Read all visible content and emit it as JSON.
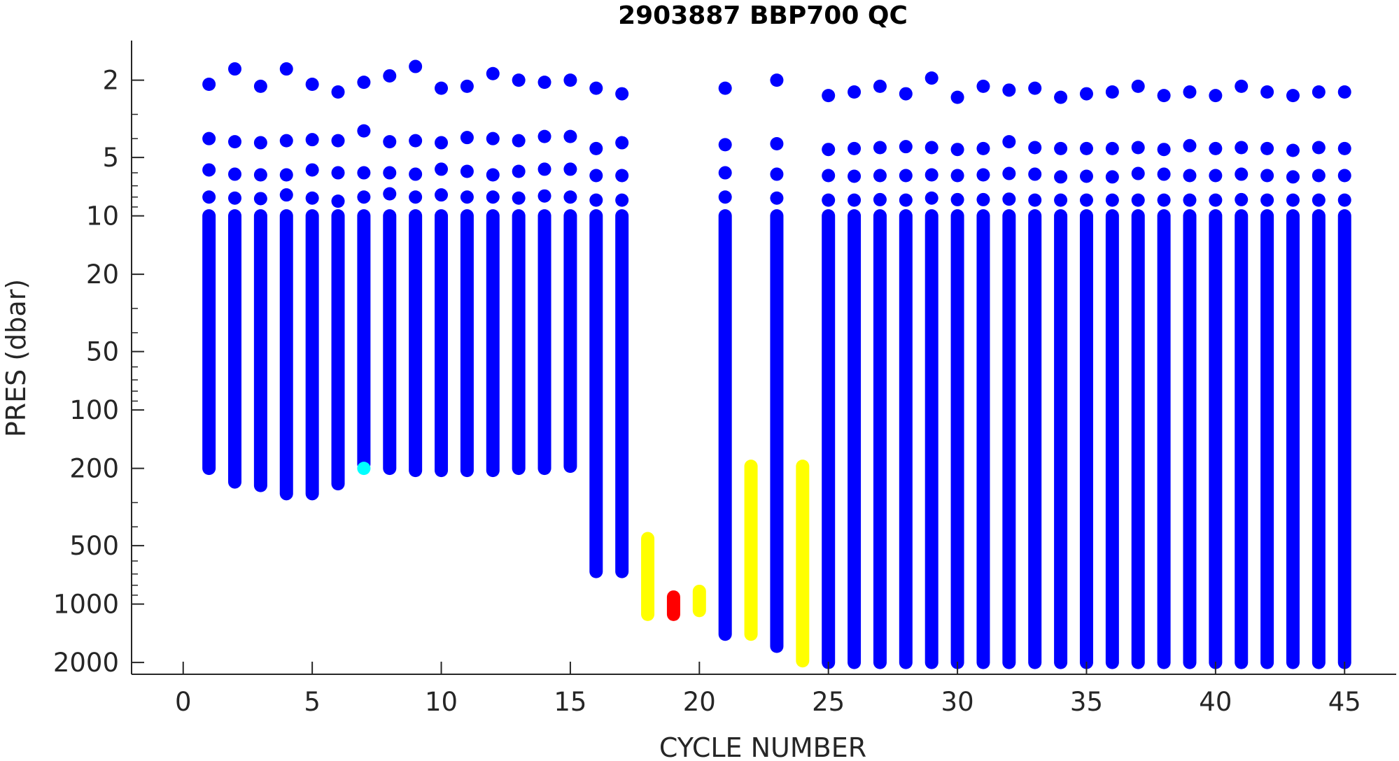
{
  "chart_data": {
    "type": "scatter",
    "title": "2903887 BBP700 QC",
    "xlabel": "CYCLE NUMBER",
    "ylabel": "PRES (dbar)",
    "xlim": [
      -2,
      47
    ],
    "xticks": [
      0,
      5,
      10,
      15,
      20,
      25,
      30,
      35,
      40,
      45
    ],
    "yscale": "log",
    "yreversed": true,
    "ylim": [
      1.25,
      2300
    ],
    "yticks": [
      2,
      5,
      10,
      20,
      50,
      100,
      200,
      500,
      1000,
      2000
    ],
    "colors": {
      "qc_good": "#0000ff",
      "qc_cyan": "#00ffff",
      "qc_yellow": "#ffff00",
      "qc_red": "#ff0000"
    },
    "profiles": [
      {
        "cycle": 1,
        "color": "#0000ff",
        "top_points": [
          2.1,
          4.0,
          5.8,
          8.0
        ],
        "column_range": [
          10,
          200
        ]
      },
      {
        "cycle": 2,
        "color": "#0000ff",
        "top_points": [
          1.75,
          4.15,
          6.1,
          8.1
        ],
        "column_range": [
          10,
          235
        ]
      },
      {
        "cycle": 3,
        "color": "#0000ff",
        "top_points": [
          2.15,
          4.2,
          6.15,
          8.15
        ],
        "column_range": [
          10,
          245
        ]
      },
      {
        "cycle": 4,
        "color": "#0000ff",
        "top_points": [
          1.75,
          4.1,
          6.15,
          7.8
        ],
        "column_range": [
          10,
          270
        ]
      },
      {
        "cycle": 5,
        "color": "#0000ff",
        "top_points": [
          2.1,
          4.05,
          5.8,
          8.1
        ],
        "column_range": [
          10,
          270
        ]
      },
      {
        "cycle": 6,
        "color": "#0000ff",
        "top_points": [
          2.3,
          4.1,
          6.0,
          8.4
        ],
        "column_range": [
          10,
          240
        ]
      },
      {
        "cycle": 7,
        "color": "#0000ff",
        "top_points": [
          2.05,
          3.65,
          6.0,
          8.0
        ],
        "column_range": [
          10,
          190
        ]
      },
      {
        "cycle": 7,
        "color": "#00ffff",
        "top_points": [
          200
        ],
        "column_range": null
      },
      {
        "cycle": 8,
        "color": "#0000ff",
        "top_points": [
          1.9,
          4.15,
          6.0,
          7.7
        ],
        "column_range": [
          10,
          200
        ]
      },
      {
        "cycle": 9,
        "color": "#0000ff",
        "top_points": [
          1.7,
          4.1,
          6.1,
          8.0
        ],
        "column_range": [
          10,
          205
        ]
      },
      {
        "cycle": 10,
        "color": "#0000ff",
        "top_points": [
          2.2,
          4.2,
          5.75,
          7.8
        ],
        "column_range": [
          10,
          205
        ]
      },
      {
        "cycle": 11,
        "color": "#0000ff",
        "top_points": [
          2.15,
          3.95,
          5.9,
          8.0
        ],
        "column_range": [
          10,
          205
        ]
      },
      {
        "cycle": 12,
        "color": "#0000ff",
        "top_points": [
          1.85,
          4.0,
          6.15,
          8.0
        ],
        "column_range": [
          10,
          205
        ]
      },
      {
        "cycle": 13,
        "color": "#0000ff",
        "top_points": [
          2.0,
          4.1,
          5.9,
          8.1
        ],
        "column_range": [
          10,
          200
        ]
      },
      {
        "cycle": 14,
        "color": "#0000ff",
        "top_points": [
          2.05,
          3.9,
          5.75,
          7.9
        ],
        "column_range": [
          10,
          200
        ]
      },
      {
        "cycle": 15,
        "color": "#0000ff",
        "top_points": [
          2.0,
          3.9,
          5.75,
          8.0
        ],
        "column_range": [
          10,
          195
        ]
      },
      {
        "cycle": 16,
        "color": "#0000ff",
        "top_points": [
          2.2,
          4.5,
          6.2,
          8.3
        ],
        "column_range": [
          10,
          680
        ]
      },
      {
        "cycle": 17,
        "color": "#0000ff",
        "top_points": [
          2.35,
          4.2,
          6.2,
          8.3
        ],
        "column_range": [
          10,
          680
        ]
      },
      {
        "cycle": 18,
        "color": "#ffff00",
        "top_points": [],
        "column_range": [
          460,
          1130
        ]
      },
      {
        "cycle": 19,
        "color": "#ff0000",
        "top_points": [],
        "column_range": [
          920,
          1130
        ]
      },
      {
        "cycle": 20,
        "color": "#ffff00",
        "top_points": [],
        "column_range": [
          860,
          1080
        ]
      },
      {
        "cycle": 21,
        "color": "#0000ff",
        "top_points": [
          2.2,
          4.3,
          6.0,
          8.0
        ],
        "column_range": [
          10,
          1430
        ]
      },
      {
        "cycle": 22,
        "color": "#ffff00",
        "top_points": [],
        "column_range": [
          195,
          1430
        ]
      },
      {
        "cycle": 23,
        "color": "#0000ff",
        "top_points": [
          2.0,
          4.25,
          6.1,
          8.1
        ],
        "column_range": [
          10,
          1650
        ]
      },
      {
        "cycle": 24,
        "color": "#ffff00",
        "top_points": [],
        "column_range": [
          195,
          1960
        ]
      },
      {
        "cycle": 25,
        "color": "#0000ff",
        "top_points": [
          2.4,
          4.55,
          6.2,
          8.3
        ],
        "column_range": [
          10,
          2000
        ]
      },
      {
        "cycle": 26,
        "color": "#0000ff",
        "top_points": [
          2.3,
          4.5,
          6.25,
          8.3
        ],
        "column_range": [
          10,
          2000
        ]
      },
      {
        "cycle": 27,
        "color": "#0000ff",
        "top_points": [
          2.15,
          4.45,
          6.2,
          8.25
        ],
        "column_range": [
          10,
          2000
        ]
      },
      {
        "cycle": 28,
        "color": "#0000ff",
        "top_points": [
          2.35,
          4.4,
          6.2,
          8.3
        ],
        "column_range": [
          10,
          2000
        ]
      },
      {
        "cycle": 29,
        "color": "#0000ff",
        "top_points": [
          1.95,
          4.45,
          6.15,
          8.1
        ],
        "column_range": [
          10,
          2000
        ]
      },
      {
        "cycle": 30,
        "color": "#0000ff",
        "top_points": [
          2.45,
          4.55,
          6.2,
          8.25
        ],
        "column_range": [
          10,
          2000
        ]
      },
      {
        "cycle": 31,
        "color": "#0000ff",
        "top_points": [
          2.15,
          4.5,
          6.15,
          8.25
        ],
        "column_range": [
          10,
          2000
        ]
      },
      {
        "cycle": 32,
        "color": "#0000ff",
        "top_points": [
          2.25,
          4.15,
          6.05,
          8.2
        ],
        "column_range": [
          10,
          2000
        ]
      },
      {
        "cycle": 33,
        "color": "#0000ff",
        "top_points": [
          2.2,
          4.45,
          6.1,
          8.3
        ],
        "column_range": [
          10,
          2000
        ]
      },
      {
        "cycle": 34,
        "color": "#0000ff",
        "top_points": [
          2.45,
          4.5,
          6.3,
          8.3
        ],
        "column_range": [
          10,
          2000
        ]
      },
      {
        "cycle": 35,
        "color": "#0000ff",
        "top_points": [
          2.35,
          4.5,
          6.25,
          8.3
        ],
        "column_range": [
          10,
          2000
        ]
      },
      {
        "cycle": 36,
        "color": "#0000ff",
        "top_points": [
          2.3,
          4.5,
          6.3,
          8.3
        ],
        "column_range": [
          10,
          2000
        ]
      },
      {
        "cycle": 37,
        "color": "#0000ff",
        "top_points": [
          2.15,
          4.45,
          6.05,
          8.3
        ],
        "column_range": [
          10,
          2000
        ]
      },
      {
        "cycle": 38,
        "color": "#0000ff",
        "top_points": [
          2.4,
          4.55,
          6.1,
          8.3
        ],
        "column_range": [
          10,
          2000
        ]
      },
      {
        "cycle": 39,
        "color": "#0000ff",
        "top_points": [
          2.3,
          4.35,
          6.2,
          8.3
        ],
        "column_range": [
          10,
          2000
        ]
      },
      {
        "cycle": 40,
        "color": "#0000ff",
        "top_points": [
          2.4,
          4.5,
          6.2,
          8.3
        ],
        "column_range": [
          10,
          2000
        ]
      },
      {
        "cycle": 41,
        "color": "#0000ff",
        "top_points": [
          2.15,
          4.45,
          6.1,
          8.25
        ],
        "column_range": [
          10,
          2000
        ]
      },
      {
        "cycle": 42,
        "color": "#0000ff",
        "top_points": [
          2.3,
          4.5,
          6.2,
          8.3
        ],
        "column_range": [
          10,
          2000
        ]
      },
      {
        "cycle": 43,
        "color": "#0000ff",
        "top_points": [
          2.4,
          4.6,
          6.3,
          8.3
        ],
        "column_range": [
          10,
          2000
        ]
      },
      {
        "cycle": 44,
        "color": "#0000ff",
        "top_points": [
          2.3,
          4.45,
          6.2,
          8.3
        ],
        "column_range": [
          10,
          2000
        ]
      },
      {
        "cycle": 45,
        "color": "#0000ff",
        "top_points": [
          2.3,
          4.5,
          6.2,
          8.3
        ],
        "column_range": [
          10,
          2000
        ]
      }
    ]
  }
}
